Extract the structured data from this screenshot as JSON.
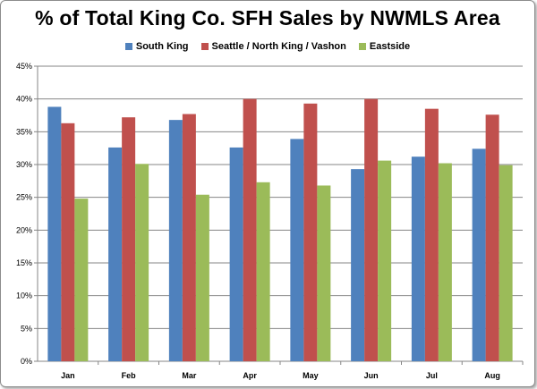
{
  "chart_data": {
    "type": "bar",
    "title": "% of Total King Co. SFH Sales by NWMLS Area",
    "xlabel": "",
    "ylabel": "",
    "categories": [
      "Jan",
      "Feb",
      "Mar",
      "Apr",
      "May",
      "Jun",
      "Jul",
      "Aug"
    ],
    "series": [
      {
        "name": "South King",
        "color": "#4f81bd",
        "values": [
          38.8,
          32.6,
          36.8,
          32.6,
          33.9,
          29.3,
          31.2,
          32.4
        ]
      },
      {
        "name": "Seattle / North King / Vashon",
        "color": "#c0504d",
        "values": [
          36.3,
          37.2,
          37.7,
          40.0,
          39.3,
          40.0,
          38.5,
          37.6
        ]
      },
      {
        "name": "Eastside",
        "color": "#9bbb59",
        "values": [
          24.8,
          30.1,
          25.4,
          27.3,
          26.8,
          30.6,
          30.2,
          29.9
        ]
      }
    ],
    "ylim": [
      0,
      45
    ],
    "yticks": [
      "0%",
      "5%",
      "10%",
      "15%",
      "20%",
      "25%",
      "30%",
      "35%",
      "40%",
      "45%"
    ],
    "grid": true,
    "legend_position": "top"
  }
}
